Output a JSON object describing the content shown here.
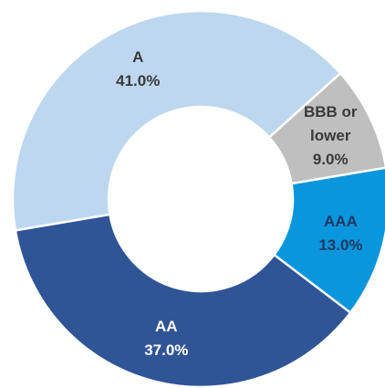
{
  "chart_data": {
    "type": "donut",
    "categories": [
      "BBB or lower",
      "AAA",
      "AA",
      "A"
    ],
    "values": [
      9,
      13,
      37,
      41
    ],
    "value_labels": [
      "9.0%",
      "13.0%",
      "37.0%",
      "41.0%"
    ],
    "colors": [
      "#bfbfbf",
      "#0a96dc",
      "#2f5597",
      "#bdd7ee"
    ],
    "label_colors": [
      "#3a3a3a",
      "#1f3864",
      "#ffffff",
      "#3a3a3a"
    ]
  }
}
